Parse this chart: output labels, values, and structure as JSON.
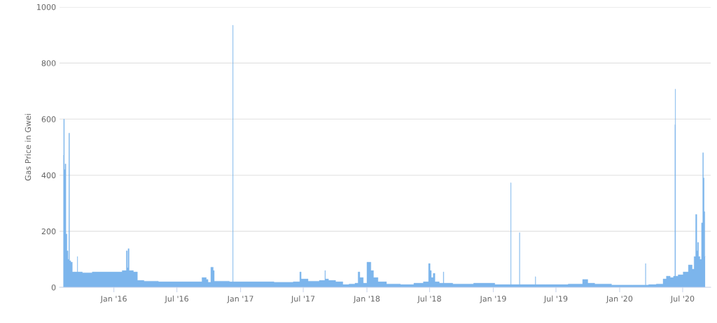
{
  "chart_data": {
    "type": "area",
    "ylabel": "Gas Price in Gwei",
    "grid": "y",
    "legend": false,
    "xlim": [
      "2015-07-28",
      "2020-09-20"
    ],
    "ylim": [
      0,
      1000
    ],
    "yticks": [
      0,
      200,
      400,
      600,
      800,
      1000
    ],
    "xticks": [
      {
        "value": "2016-01-01",
        "label": "Jan '16"
      },
      {
        "value": "2016-07-01",
        "label": "Jul '16"
      },
      {
        "value": "2017-01-01",
        "label": "Jan '17"
      },
      {
        "value": "2017-07-01",
        "label": "Jul '17"
      },
      {
        "value": "2018-01-01",
        "label": "Jan '18"
      },
      {
        "value": "2018-07-01",
        "label": "Jul '18"
      },
      {
        "value": "2019-01-01",
        "label": "Jan '19"
      },
      {
        "value": "2019-07-01",
        "label": "Jul '19"
      },
      {
        "value": "2020-01-01",
        "label": "Jan '20"
      },
      {
        "value": "2020-07-01",
        "label": "Jul '20"
      }
    ],
    "series": [
      {
        "color": "#7cb5ec",
        "x": [
          "2015-08-08",
          "2015-08-10",
          "2015-08-12",
          "2015-08-14",
          "2015-08-17",
          "2015-08-20",
          "2015-08-23",
          "2015-08-25",
          "2015-08-27",
          "2015-09-01",
          "2015-09-05",
          "2015-09-17",
          "2015-09-18",
          "2015-09-19",
          "2015-10-15",
          "2015-11-15",
          "2015-12-15",
          "2016-01-15",
          "2016-02-04",
          "2016-02-08",
          "2016-02-10",
          "2016-02-12",
          "2016-02-16",
          "2016-03-08",
          "2016-03-10",
          "2016-04-15",
          "2016-06-01",
          "2016-09-01",
          "2016-09-22",
          "2016-09-26",
          "2016-10-02",
          "2016-10-12",
          "2016-10-16",
          "2016-10-18",
          "2016-11-20",
          "2016-12-09",
          "2016-12-10",
          "2016-12-11",
          "2017-03-01",
          "2017-05-15",
          "2017-06-20",
          "2017-06-22",
          "2017-06-28",
          "2017-08-01",
          "2017-09-01",
          "2017-09-02",
          "2017-09-04",
          "2017-09-20",
          "2017-10-15",
          "2017-11-01",
          "2017-11-20",
          "2017-12-05",
          "2017-12-08",
          "2017-12-15",
          "2017-12-28",
          "2018-01-05",
          "2018-01-10",
          "2018-01-15",
          "2018-01-25",
          "2018-02-10",
          "2018-03-15",
          "2018-05-01",
          "2018-06-01",
          "2018-06-25",
          "2018-07-01",
          "2018-07-04",
          "2018-07-08",
          "2018-07-15",
          "2018-07-18",
          "2018-08-09",
          "2018-08-10",
          "2018-08-12",
          "2018-10-01",
          "2018-12-10",
          "2019-02-01",
          "2019-02-20",
          "2019-02-21",
          "2019-02-22",
          "2019-03-17",
          "2019-03-18",
          "2019-03-19",
          "2019-05-02",
          "2019-05-03",
          "2019-05-04",
          "2019-07-01",
          "2019-09-10",
          "2019-09-22",
          "2019-10-10",
          "2019-11-01",
          "2020-01-15",
          "2020-03-01",
          "2020-03-15",
          "2020-03-16",
          "2020-03-17",
          "2020-04-01",
          "2020-05-01",
          "2020-05-10",
          "2020-05-20",
          "2020-06-01",
          "2020-06-08",
          "2020-06-09",
          "2020-06-10",
          "2020-06-11",
          "2020-06-25",
          "2020-07-10",
          "2020-07-25",
          "2020-08-01",
          "2020-08-05",
          "2020-08-10",
          "2020-08-12",
          "2020-08-14",
          "2020-08-18",
          "2020-08-22",
          "2020-08-27",
          "2020-08-29",
          "2020-08-31",
          "2020-09-02",
          "2020-09-04"
        ],
        "values": [
          470,
          600,
          420,
          440,
          190,
          130,
          100,
          550,
          95,
          90,
          55,
          55,
          110,
          55,
          52,
          55,
          55,
          55,
          60,
          130,
          70,
          138,
          60,
          55,
          25,
          22,
          20,
          20,
          35,
          28,
          18,
          72,
          60,
          22,
          22,
          20,
          935,
          20,
          20,
          18,
          20,
          55,
          30,
          22,
          25,
          60,
          30,
          25,
          20,
          10,
          12,
          15,
          55,
          35,
          15,
          90,
          90,
          60,
          35,
          20,
          12,
          10,
          15,
          20,
          85,
          60,
          35,
          50,
          20,
          15,
          55,
          15,
          12,
          15,
          10,
          10,
          373,
          10,
          10,
          195,
          10,
          10,
          38,
          10,
          10,
          12,
          28,
          15,
          12,
          8,
          8,
          8,
          85,
          8,
          10,
          12,
          30,
          40,
          35,
          40,
          580,
          707,
          40,
          45,
          55,
          80,
          65,
          110,
          260,
          130,
          160,
          110,
          100,
          230,
          480,
          390,
          270,
          110
        ]
      }
    ]
  }
}
